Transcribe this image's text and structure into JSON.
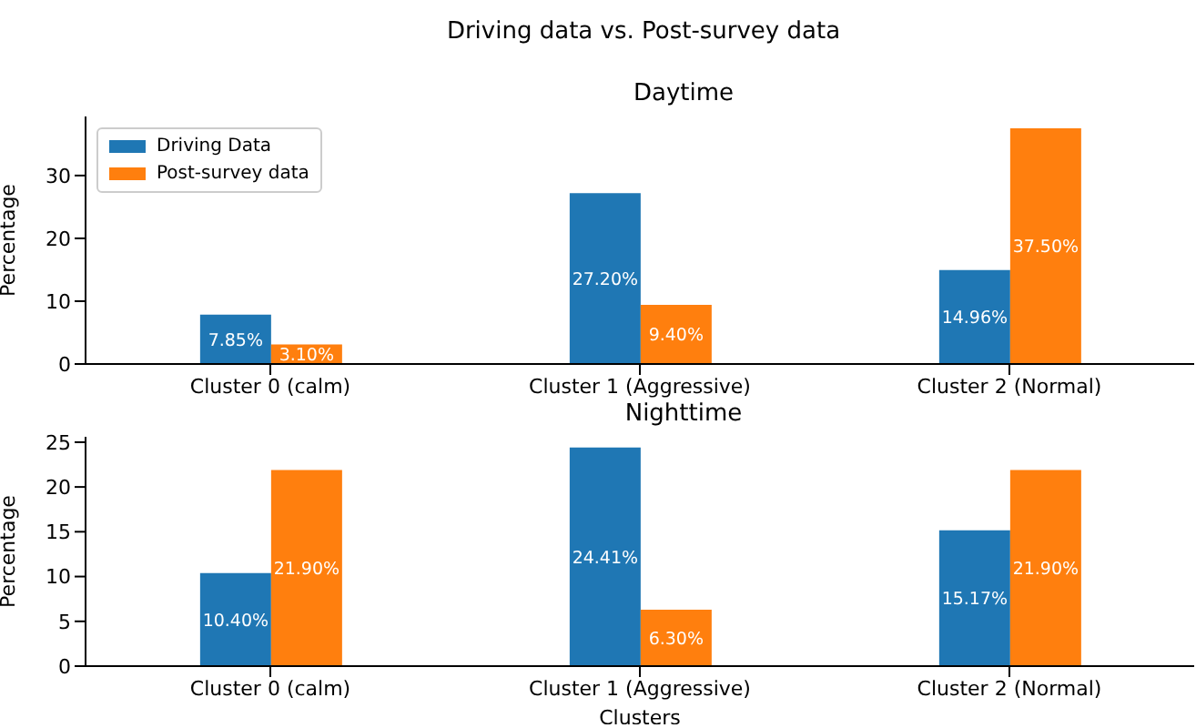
{
  "chart_data": [
    {
      "type": "bar",
      "title": "Driving data  vs. Post-survey data",
      "subtitle": "Daytime",
      "ylabel": "Percentage",
      "categories": [
        "Cluster 0 (calm)",
        "Cluster 1 (Aggressive)",
        "Cluster 2 (Normal)"
      ],
      "series": [
        {
          "name": "Driving Data",
          "color": "#1f77b4",
          "values": [
            7.85,
            27.2,
            14.96
          ],
          "value_labels": [
            "7.85%",
            "27.20%",
            "14.96%"
          ]
        },
        {
          "name": "Post-survey data",
          "color": "#ff7f0e",
          "values": [
            3.1,
            9.4,
            37.5
          ],
          "value_labels": [
            "3.10%",
            "9.40%",
            "37.50%"
          ]
        }
      ],
      "ylim": [
        0,
        39.4
      ],
      "yticks": [
        0,
        10,
        20,
        30
      ],
      "grid": false,
      "legend": "top left"
    },
    {
      "type": "bar",
      "subtitle": "Nighttime",
      "xlabel": "Clusters",
      "ylabel": "Percentage",
      "categories": [
        "Cluster 0 (calm)",
        "Cluster 1 (Aggressive)",
        "Cluster 2 (Normal)"
      ],
      "series": [
        {
          "color": "#1f77b4",
          "values": [
            10.4,
            24.41,
            15.17
          ],
          "value_labels": [
            "10.40%",
            "24.41%",
            "15.17%"
          ]
        },
        {
          "color": "#ff7f0e",
          "values": [
            21.9,
            6.3,
            21.9
          ],
          "value_labels": [
            "21.90%",
            "6.30%",
            "21.90%"
          ]
        }
      ],
      "ylim": [
        0,
        25.6
      ],
      "yticks": [
        0,
        5,
        10,
        15,
        20,
        25
      ],
      "grid": false,
      "legend": false
    }
  ]
}
